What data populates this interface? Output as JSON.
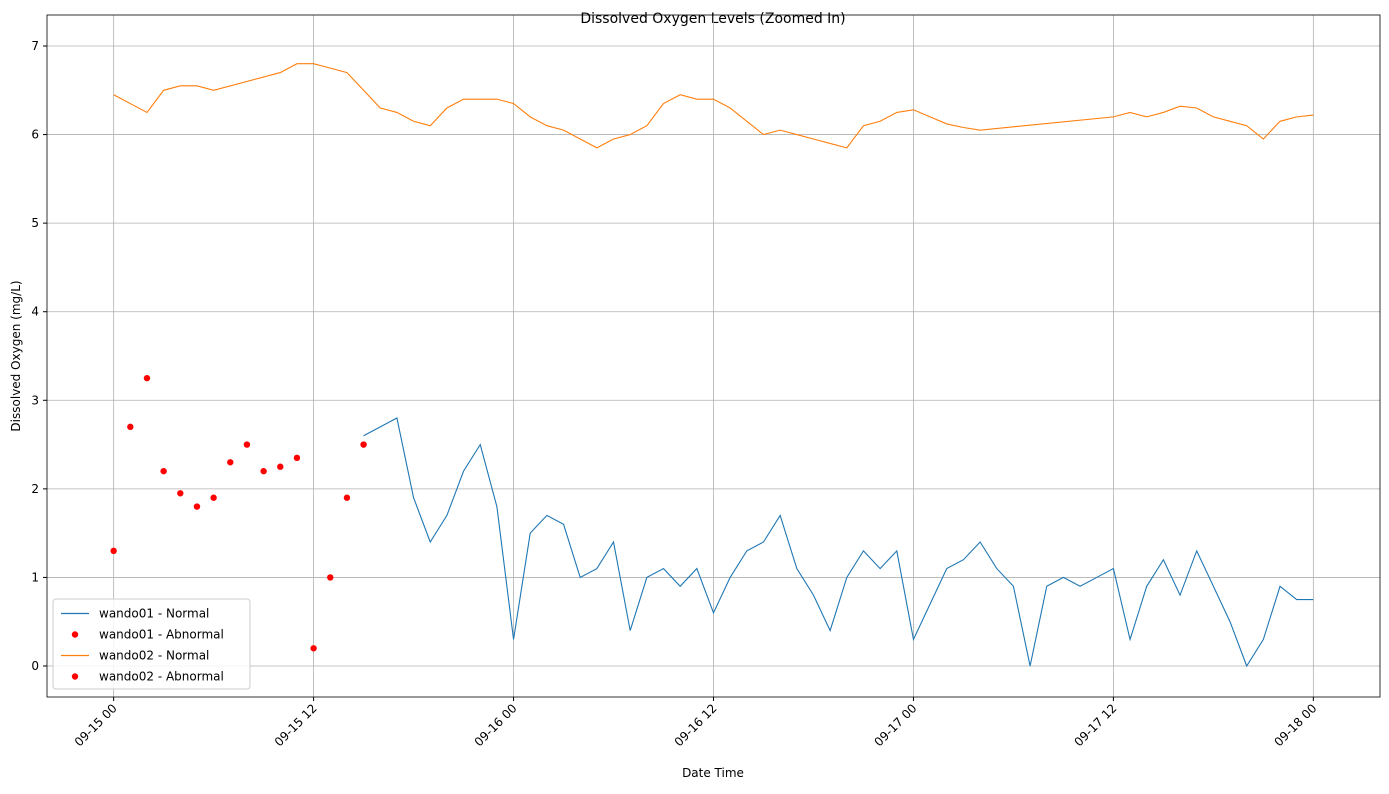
{
  "chart_data": {
    "type": "line",
    "title": "Dissolved Oxygen Levels (Zoomed In)",
    "x_label": "Date Time",
    "y_label": "Dissolved Oxygen (mg/L)",
    "xlim": [
      "09-14 20",
      "09-18 04"
    ],
    "xticks": [
      "09-15 00",
      "09-15 12",
      "09-16 00",
      "09-16 12",
      "09-17 00",
      "09-17 12",
      "09-18 00"
    ],
    "ylim": [
      -0.35,
      7.35
    ],
    "yticks": [
      0,
      1,
      2,
      3,
      4,
      5,
      6,
      7
    ],
    "grid": true,
    "legend": "lower left",
    "series": [
      {
        "name": "wando01 - Normal",
        "type": "line",
        "color": "#1f77b4",
        "x": [
          "09-15 15",
          "09-15 16",
          "09-15 17",
          "09-15 18",
          "09-15 19",
          "09-15 20",
          "09-15 21",
          "09-15 22",
          "09-15 23",
          "09-16 00",
          "09-16 01",
          "09-16 02",
          "09-16 03",
          "09-16 04",
          "09-16 05",
          "09-16 06",
          "09-16 07",
          "09-16 08",
          "09-16 09",
          "09-16 10",
          "09-16 11",
          "09-16 12",
          "09-16 13",
          "09-16 14",
          "09-16 15",
          "09-16 16",
          "09-16 17",
          "09-16 18",
          "09-16 19",
          "09-16 20",
          "09-16 21",
          "09-16 22",
          "09-16 23",
          "09-17 00",
          "09-17 01",
          "09-17 02",
          "09-17 03",
          "09-17 04",
          "09-17 05",
          "09-17 06",
          "09-17 07",
          "09-17 08",
          "09-17 09",
          "09-17 10",
          "09-17 11",
          "09-17 12",
          "09-17 13",
          "09-17 14",
          "09-17 15",
          "09-17 16",
          "09-17 17",
          "09-17 18",
          "09-17 19",
          "09-17 20",
          "09-17 21",
          "09-17 22",
          "09-17 23",
          "09-18 00"
        ],
        "values": [
          2.6,
          2.7,
          2.8,
          1.9,
          1.4,
          1.7,
          2.2,
          2.5,
          1.8,
          0.3,
          1.5,
          1.7,
          1.6,
          1.0,
          1.1,
          1.4,
          0.4,
          1.0,
          1.1,
          0.9,
          1.1,
          0.6,
          1.0,
          1.3,
          1.4,
          1.7,
          1.1,
          0.8,
          0.4,
          1.0,
          1.3,
          1.1,
          1.3,
          0.3,
          0.7,
          1.1,
          1.2,
          1.4,
          1.1,
          0.9,
          0.0,
          0.9,
          1.0,
          0.9,
          1.0,
          1.1,
          0.3,
          0.9,
          1.2,
          0.8,
          1.3,
          0.9,
          0.5,
          0.0,
          0.3,
          0.9,
          0.75,
          0.75
        ]
      },
      {
        "name": "wando01 - Abnormal",
        "type": "scatter",
        "color": "#ff0000",
        "x": [
          "09-15 00",
          "09-15 01",
          "09-15 02",
          "09-15 03",
          "09-15 04",
          "09-15 05",
          "09-15 06",
          "09-15 07",
          "09-15 08",
          "09-15 09",
          "09-15 10",
          "09-15 11",
          "09-15 12",
          "09-15 13",
          "09-15 14",
          "09-15 15"
        ],
        "values": [
          1.3,
          2.7,
          3.25,
          2.2,
          1.95,
          1.8,
          1.9,
          2.3,
          2.5,
          2.2,
          2.25,
          2.35,
          0.2,
          1.0,
          1.9,
          2.5
        ]
      },
      {
        "name": "wando02 - Normal",
        "type": "line",
        "color": "#ff7f0e",
        "x": [
          "09-15 00",
          "09-15 01",
          "09-15 02",
          "09-15 03",
          "09-15 04",
          "09-15 05",
          "09-15 06",
          "09-15 10",
          "09-15 11",
          "09-15 12",
          "09-15 13",
          "09-15 14",
          "09-15 15",
          "09-15 16",
          "09-15 17",
          "09-15 18",
          "09-15 19",
          "09-15 20",
          "09-15 21",
          "09-15 22",
          "09-15 23",
          "09-16 00",
          "09-16 01",
          "09-16 02",
          "09-16 03",
          "09-16 04",
          "09-16 05",
          "09-16 06",
          "09-16 07",
          "09-16 08",
          "09-16 09",
          "09-16 10",
          "09-16 11",
          "09-16 12",
          "09-16 13",
          "09-16 14",
          "09-16 15",
          "09-16 16",
          "09-16 17",
          "09-16 18",
          "09-16 19",
          "09-16 20",
          "09-16 21",
          "09-16 22",
          "09-16 23",
          "09-17 00",
          "09-17 01",
          "09-17 02",
          "09-17 03",
          "09-17 04",
          "09-17 12",
          "09-17 13",
          "09-17 14",
          "09-17 15",
          "09-17 16",
          "09-17 17",
          "09-17 18",
          "09-17 19",
          "09-17 20",
          "09-17 21",
          "09-17 22",
          "09-17 23",
          "09-18 00"
        ],
        "values": [
          6.45,
          6.35,
          6.25,
          6.5,
          6.55,
          6.55,
          6.5,
          6.7,
          6.8,
          6.8,
          6.75,
          6.7,
          6.5,
          6.3,
          6.25,
          6.15,
          6.1,
          6.3,
          6.4,
          6.4,
          6.4,
          6.35,
          6.2,
          6.1,
          6.05,
          5.95,
          5.85,
          5.95,
          6.0,
          6.1,
          6.35,
          6.45,
          6.4,
          6.4,
          6.3,
          6.15,
          6.0,
          6.05,
          6.0,
          5.95,
          5.9,
          5.85,
          6.1,
          6.15,
          6.25,
          6.28,
          6.2,
          6.12,
          6.08,
          6.05,
          6.2,
          6.25,
          6.2,
          6.25,
          6.32,
          6.3,
          6.2,
          6.15,
          6.1,
          5.95,
          6.15,
          6.2,
          6.22
        ]
      },
      {
        "name": "wando02 - Abnormal",
        "type": "scatter",
        "color": "#ff0000",
        "x": [],
        "values": []
      }
    ]
  }
}
